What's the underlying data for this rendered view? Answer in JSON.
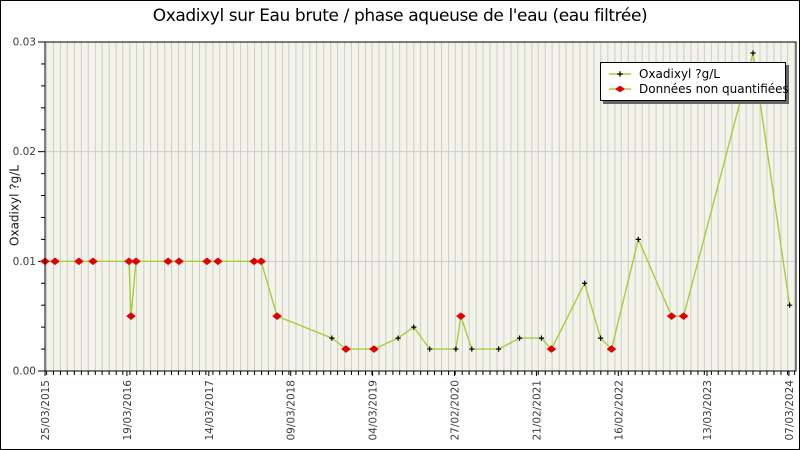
{
  "colors": {
    "line": "#a6ce39",
    "nonquantified": "#e10000",
    "quantified_marker": "#000000",
    "plot_bg": "#f4f3ea",
    "grid": "#cccccc",
    "axis": "#000000",
    "tick_text": "#3c3c3c",
    "legend_shadow": "#666666"
  },
  "chart_data": {
    "type": "line",
    "title": "Oxadixyl sur Eau brute / phase aqueuse de l'eau (eau filtrée)",
    "ylabel": "Oxadixyl ?g/L",
    "xlabel": "",
    "legend": [
      {
        "label": "Oxadixyl ?g/L",
        "marker": "black-plus"
      },
      {
        "label": "Données non quantifiées",
        "marker": "red-diamond"
      }
    ],
    "legend_position": "top-right",
    "grid": "monthly-vertical-and-major-horizontal",
    "y_axis": {
      "min": 0,
      "max": 0.03,
      "minor_step": 0.002,
      "ticks": [
        "0.00",
        "0.01",
        "0.02",
        "0.03"
      ]
    },
    "x_axis": {
      "start": "2015-03-25",
      "end": "2024-04-07",
      "minor": "monthly",
      "ticks": [
        "25/03/2015",
        "19/03/2016",
        "14/03/2017",
        "09/03/2018",
        "04/03/2019",
        "27/02/2020",
        "21/02/2021",
        "16/02/2022",
        "13/03/2023",
        "07/03/2024"
      ]
    },
    "series": [
      {
        "name": "Oxadixyl ?g/L",
        "points": [
          {
            "d": "2015-03-25",
            "v": 0.01,
            "quantified": false
          },
          {
            "d": "2015-05-08",
            "v": 0.01,
            "quantified": false
          },
          {
            "d": "2015-08-21",
            "v": 0.01,
            "quantified": false
          },
          {
            "d": "2015-10-22",
            "v": 0.01,
            "quantified": false
          },
          {
            "d": "2016-03-28",
            "v": 0.01,
            "quantified": false
          },
          {
            "d": "2016-04-06",
            "v": 0.005,
            "quantified": false
          },
          {
            "d": "2016-04-28",
            "v": 0.01,
            "quantified": false
          },
          {
            "d": "2016-09-16",
            "v": 0.01,
            "quantified": false
          },
          {
            "d": "2016-11-03",
            "v": 0.01,
            "quantified": false
          },
          {
            "d": "2017-03-06",
            "v": 0.01,
            "quantified": false
          },
          {
            "d": "2017-04-23",
            "v": 0.01,
            "quantified": false
          },
          {
            "d": "2017-09-29",
            "v": 0.01,
            "quantified": false
          },
          {
            "d": "2017-10-30",
            "v": 0.01,
            "quantified": false
          },
          {
            "d": "2018-01-08",
            "v": 0.005,
            "quantified": false
          },
          {
            "d": "2018-09-06",
            "v": 0.003,
            "quantified": true
          },
          {
            "d": "2018-11-07",
            "v": 0.002,
            "quantified": false
          },
          {
            "d": "2019-03-10",
            "v": 0.002,
            "quantified": false
          },
          {
            "d": "2019-06-24",
            "v": 0.003,
            "quantified": true
          },
          {
            "d": "2019-09-01",
            "v": 0.004,
            "quantified": true
          },
          {
            "d": "2019-11-10",
            "v": 0.002,
            "quantified": true
          },
          {
            "d": "2020-03-04",
            "v": 0.002,
            "quantified": true
          },
          {
            "d": "2020-03-26",
            "v": 0.005,
            "quantified": false
          },
          {
            "d": "2020-05-13",
            "v": 0.002,
            "quantified": true
          },
          {
            "d": "2020-09-08",
            "v": 0.002,
            "quantified": true
          },
          {
            "d": "2020-12-09",
            "v": 0.003,
            "quantified": true
          },
          {
            "d": "2021-03-15",
            "v": 0.003,
            "quantified": true
          },
          {
            "d": "2021-04-28",
            "v": 0.002,
            "quantified": false
          },
          {
            "d": "2021-09-21",
            "v": 0.008,
            "quantified": true
          },
          {
            "d": "2021-11-30",
            "v": 0.003,
            "quantified": true
          },
          {
            "d": "2022-01-17",
            "v": 0.002,
            "quantified": false
          },
          {
            "d": "2022-05-15",
            "v": 0.012,
            "quantified": true
          },
          {
            "d": "2022-10-08",
            "v": 0.005,
            "quantified": false
          },
          {
            "d": "2022-11-30",
            "v": 0.005,
            "quantified": false
          },
          {
            "d": "2023-10-01",
            "v": 0.029,
            "quantified": true
          },
          {
            "d": "2024-03-10",
            "v": 0.006,
            "quantified": true
          }
        ]
      }
    ]
  }
}
